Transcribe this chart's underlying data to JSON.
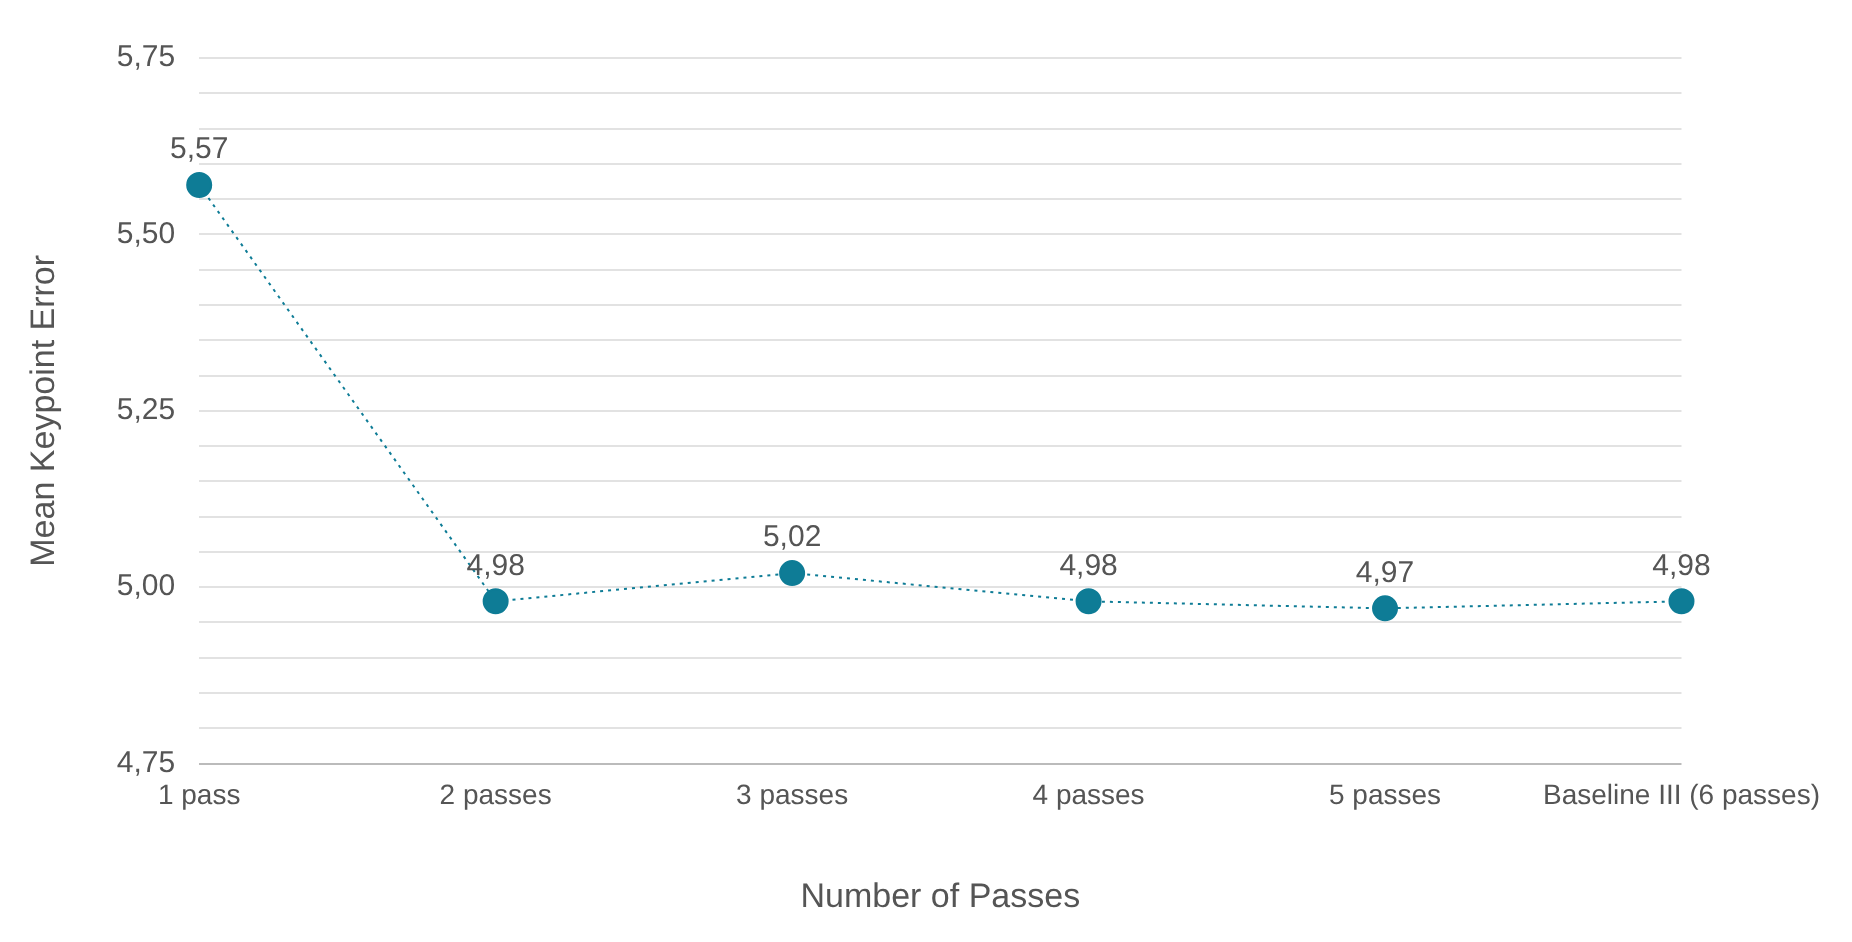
{
  "chart_data": {
    "type": "line",
    "xlabel": "Number of Passes",
    "ylabel": "Mean Keypoint Error",
    "categories": [
      "1 pass",
      "2 passes",
      "3 passes",
      "4 passes",
      "5 passes",
      "Baseline III (6 passes)"
    ],
    "series": [
      {
        "color": "#0e7c96",
        "values": [
          5.57,
          4.98,
          5.02,
          4.98,
          4.97,
          4.98
        ],
        "value_labels": [
          "5,57",
          "4,98",
          "5,02",
          "4,98",
          "4,97",
          "4,98"
        ]
      }
    ],
    "ylim": [
      4.75,
      5.75
    ],
    "yticks": [
      {
        "value": 4.75,
        "label": "4,75"
      },
      {
        "value": 4.8,
        "label": null
      },
      {
        "value": 4.85,
        "label": null
      },
      {
        "value": 4.9,
        "label": null
      },
      {
        "value": 4.95,
        "label": null
      },
      {
        "value": 5.0,
        "label": "5,00"
      },
      {
        "value": 5.05,
        "label": null
      },
      {
        "value": 5.1,
        "label": null
      },
      {
        "value": 5.15,
        "label": null
      },
      {
        "value": 5.2,
        "label": null
      },
      {
        "value": 5.25,
        "label": "5,25"
      },
      {
        "value": 5.3,
        "label": null
      },
      {
        "value": 5.35,
        "label": null
      },
      {
        "value": 5.4,
        "label": null
      },
      {
        "value": 5.45,
        "label": null
      },
      {
        "value": 5.5,
        "label": "5,50"
      },
      {
        "value": 5.55,
        "label": null
      },
      {
        "value": 5.6,
        "label": null
      },
      {
        "value": 5.65,
        "label": null
      },
      {
        "value": 5.7,
        "label": null
      },
      {
        "value": 5.75,
        "label": "5,75"
      }
    ],
    "grid": "y",
    "marker": "circle",
    "line_style": "dotted",
    "legend": false
  }
}
